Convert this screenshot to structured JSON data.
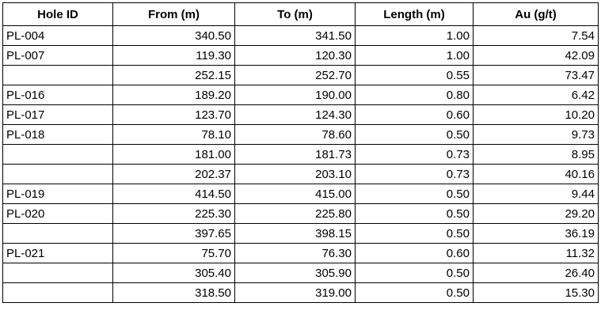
{
  "table": {
    "header": [
      "Hole ID",
      "From (m)",
      "To (m)",
      "Length (m)",
      "Au (g/t)"
    ],
    "rows": [
      [
        "PL-004",
        "340.50",
        "341.50",
        "1.00",
        "7.54"
      ],
      [
        "PL-007",
        "119.30",
        "120.30",
        "1.00",
        "42.09"
      ],
      [
        null,
        "252.15",
        "252.70",
        "0.55",
        "73.47"
      ],
      [
        "PL-016",
        "189.20",
        "190.00",
        "0.80",
        "6.42"
      ],
      [
        "PL-017",
        "123.70",
        "124.30",
        "0.60",
        "10.20"
      ],
      [
        "PL-018",
        "78.10",
        "78.60",
        "0.50",
        "9.73"
      ],
      [
        null,
        "181.00",
        "181.73",
        "0.73",
        "8.95"
      ],
      [
        null,
        "202.37",
        "203.10",
        "0.73",
        "40.16"
      ],
      [
        "PL-019",
        "414.50",
        "415.00",
        "0.50",
        "9.44"
      ],
      [
        "PL-020",
        "225.30",
        "225.80",
        "0.50",
        "29.20"
      ],
      [
        null,
        "397.65",
        "398.15",
        "0.50",
        "36.19"
      ],
      [
        "PL-021",
        "75.70",
        "76.30",
        "0.60",
        "11.32"
      ],
      [
        null,
        "305.40",
        "305.90",
        "0.50",
        "26.40"
      ],
      [
        null,
        "318.50",
        "319.00",
        "0.50",
        "15.30"
      ]
    ]
  }
}
